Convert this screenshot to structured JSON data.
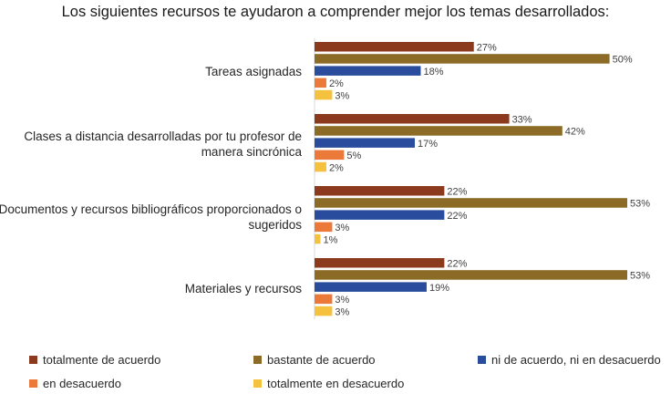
{
  "chart_data": {
    "type": "bar",
    "orientation": "horizontal",
    "title": "Los siguientes recursos te ayudaron a comprender mejor los temas desarrollados:",
    "categories": [
      "Tareas asignadas",
      "Clases a distancia desarrolladas por tu profesor de manera sincrónica",
      "Documentos y recursos bibliográficos proporcionados o sugeridos",
      "Materiales y recursos"
    ],
    "series": [
      {
        "name": "totalmente de acuerdo",
        "color": "#8B3A1E",
        "values": [
          27,
          33,
          22,
          22
        ],
        "labels": [
          "27%",
          "33%",
          "22%",
          "22%"
        ]
      },
      {
        "name": "bastante de acuerdo",
        "color": "#8C6B26",
        "values": [
          50,
          42,
          53,
          53
        ],
        "labels": [
          "50%",
          "42%",
          "53%",
          "53%"
        ]
      },
      {
        "name": "ni de acuerdo, ni en desacuerdo",
        "color": "#2A4C9C",
        "values": [
          18,
          17,
          22,
          19
        ],
        "labels": [
          "18%",
          "17%",
          "22%",
          "19%"
        ]
      },
      {
        "name": "en desacuerdo",
        "color": "#EB7A3A",
        "values": [
          2,
          5,
          3,
          3
        ],
        "labels": [
          "2%",
          "5%",
          "3%",
          "3%"
        ]
      },
      {
        "name": "totalmente en desacuerdo",
        "color": "#F4C23E",
        "values": [
          3,
          2,
          1,
          3
        ],
        "labels": [
          "3%",
          "2%",
          "1%",
          "3%"
        ]
      }
    ],
    "xlim": [
      0,
      55
    ],
    "grid": false,
    "legend_position": "bottom"
  }
}
